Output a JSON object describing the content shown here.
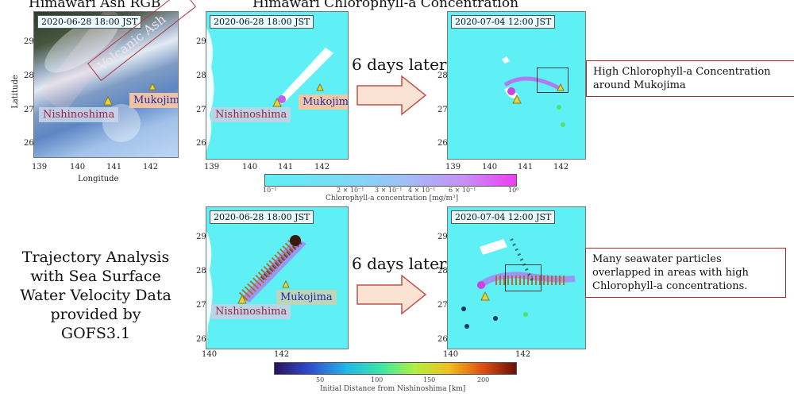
{
  "titles": {
    "ash_rgb": "Himawari Ash RGB",
    "chl": "Himawari Chlorophyll-a Concentration"
  },
  "panels": {
    "ash": {
      "timestamp": "2020-06-28 18:00 JST",
      "xticks": [
        "139",
        "140",
        "141",
        "142"
      ],
      "yticks": [
        "29",
        "28",
        "27",
        "26"
      ],
      "xlabel": "Longitude",
      "ylabel": "Latitude",
      "plume_label": "Volcanic Ash",
      "label_nishinoshima": "Nishinoshima",
      "label_mukojima": "Mukojima"
    },
    "chl_before": {
      "timestamp": "2020-06-28 18:00 JST",
      "xticks": [
        "139",
        "140",
        "141",
        "142"
      ],
      "yticks": [
        "29",
        "28",
        "27",
        "26"
      ],
      "label_nishinoshima": "Nishinoshima",
      "label_mukojima": "Mukojima"
    },
    "chl_after": {
      "timestamp": "2020-07-04 12:00 JST",
      "xticks": [
        "139",
        "140",
        "141",
        "142"
      ],
      "yticks": [
        "28",
        "27",
        "26"
      ]
    },
    "traj_before": {
      "timestamp": "2020-06-28 18:00 JST",
      "xticks": [
        "140",
        "142"
      ],
      "yticks": [
        "29",
        "28",
        "27",
        "26"
      ],
      "label_nishinoshima": "Nishinoshima",
      "label_mukojima": "Mukojima"
    },
    "traj_after": {
      "timestamp": "2020-07-04 12:00 JST",
      "xticks": [
        "140",
        "142"
      ],
      "yticks": [
        "29",
        "28",
        "27",
        "26"
      ]
    }
  },
  "arrows": {
    "top": "6 days later",
    "bottom": "6 days later"
  },
  "callouts": {
    "top": "High Chlorophyll-a Concentration around Mukojima",
    "bottom": "Many seawater particles overlapped in areas with high Chlorophyll-a concentrations."
  },
  "colorbar_chl": {
    "ticks": [
      "10⁻¹",
      "2 × 10⁻¹",
      "3 × 10⁻¹",
      "4 × 10⁻¹",
      "6 × 10⁻¹",
      "10⁰"
    ],
    "label": "Chlorophyll-a concentration [mg/m³]"
  },
  "colorbar_dist": {
    "ticks": [
      "50",
      "100",
      "150",
      "200"
    ],
    "label": "Initial Distance from Nishinoshima [km]"
  },
  "trajectory_text": "Trajectory Analysis with Sea Surface Water Velocity Data provided by GOFS3.1",
  "colors": {
    "ocean": "#5ef0f5",
    "callout_border": "#a1272b",
    "arrow_fill": "#fbe3d4",
    "arrow_stroke": "#c0504d"
  }
}
